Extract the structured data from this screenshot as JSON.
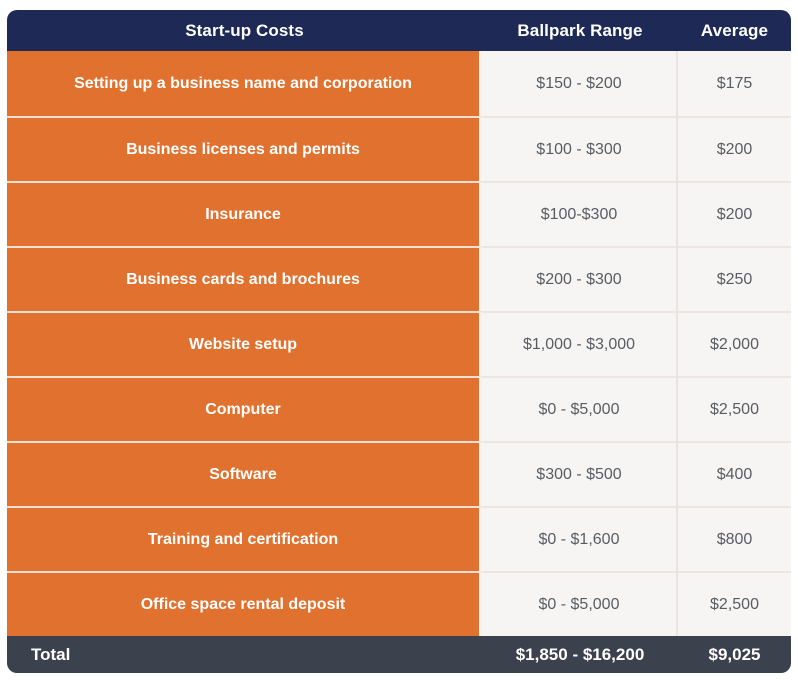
{
  "table": {
    "header": {
      "costs": "Start-up Costs",
      "range": "Ballpark Range",
      "average": "Average"
    },
    "rows": [
      {
        "label": "Setting up a business name and corporation",
        "range": "$150 - $200",
        "average": "$175"
      },
      {
        "label": "Business licenses and permits",
        "range": "$100 - $300",
        "average": "$200"
      },
      {
        "label": "Insurance",
        "range": "$100-$300",
        "average": "$200"
      },
      {
        "label": "Business cards and brochures",
        "range": "$200 - $300",
        "average": "$250"
      },
      {
        "label": "Website setup",
        "range": "$1,000 - $3,000",
        "average": "$2,000"
      },
      {
        "label": "Computer",
        "range": "$0 - $5,000",
        "average": "$2,500"
      },
      {
        "label": "Software",
        "range": "$300 - $500",
        "average": "$400"
      },
      {
        "label": "Training and certification",
        "range": "$0 - $1,600",
        "average": "$800"
      },
      {
        "label": "Office space rental deposit",
        "range": "$0 - $5,000",
        "average": "$2,500"
      }
    ],
    "total": {
      "label": "Total",
      "range": "$1,850 - $16,200",
      "average": "$9,025"
    }
  },
  "colors": {
    "header_bg": "#1e2a55",
    "category_bg": "#e0712e",
    "value_bg": "#f6f5f3",
    "value_text": "#595d63",
    "total_bg": "#3b414d",
    "separator": "#ece5e2"
  },
  "chart_data": {
    "type": "table",
    "title": "Start-up Costs",
    "columns": [
      "Start-up Costs",
      "Ballpark Range",
      "Average"
    ],
    "rows": [
      {
        "item": "Setting up a business name and corporation",
        "range_text": "$150 - $200",
        "min": 150,
        "max": 200,
        "average": 175
      },
      {
        "item": "Business licenses and permits",
        "range_text": "$100 - $300",
        "min": 100,
        "max": 300,
        "average": 200
      },
      {
        "item": "Insurance",
        "range_text": "$100-$300",
        "min": 100,
        "max": 300,
        "average": 200
      },
      {
        "item": "Business cards and brochures",
        "range_text": "$200 - $300",
        "min": 200,
        "max": 300,
        "average": 250
      },
      {
        "item": "Website setup",
        "range_text": "$1,000 - $3,000",
        "min": 1000,
        "max": 3000,
        "average": 2000
      },
      {
        "item": "Computer",
        "range_text": "$0 - $5,000",
        "min": 0,
        "max": 5000,
        "average": 2500
      },
      {
        "item": "Software",
        "range_text": "$300 - $500",
        "min": 300,
        "max": 500,
        "average": 400
      },
      {
        "item": "Training and certification",
        "range_text": "$0 - $1,600",
        "min": 0,
        "max": 1600,
        "average": 800
      },
      {
        "item": "Office space rental deposit",
        "range_text": "$0 - $5,000",
        "min": 0,
        "max": 5000,
        "average": 2500
      }
    ],
    "total": {
      "item": "Total",
      "range_text": "$1,850 - $16,200",
      "min": 1850,
      "max": 16200,
      "average": 9025
    }
  }
}
